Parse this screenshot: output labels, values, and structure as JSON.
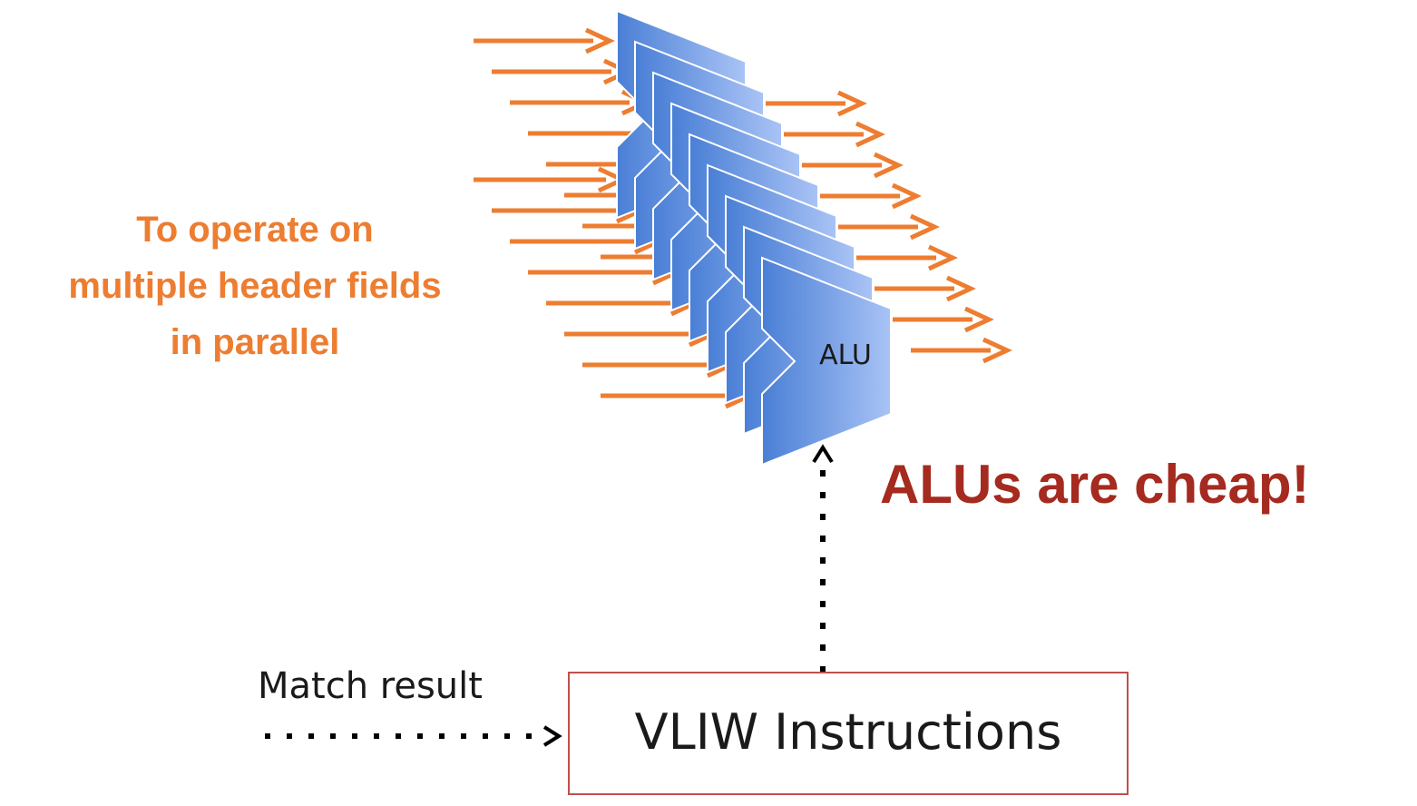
{
  "diagram": {
    "left_note_lines": [
      "To operate on",
      "multiple header fields",
      "in parallel"
    ],
    "alu_label": "ALU",
    "alu_count": 9,
    "right_note": "ALUs are cheap!",
    "match_label": "Match result",
    "instruction_box_label": "VLIW Instructions"
  },
  "colors": {
    "arrow": "#ed7d31",
    "note_orange": "#ed7d31",
    "note_red": "#a52a1f",
    "alu_fill_dark": "#4a7fd6",
    "alu_fill_light": "#a9c3f5",
    "box_border": "#c0504d"
  },
  "icons": {
    "input_arrow": "right-arrow-icon",
    "output_arrow": "right-arrow-icon",
    "dotted_arrow": "dotted-arrow-icon"
  }
}
